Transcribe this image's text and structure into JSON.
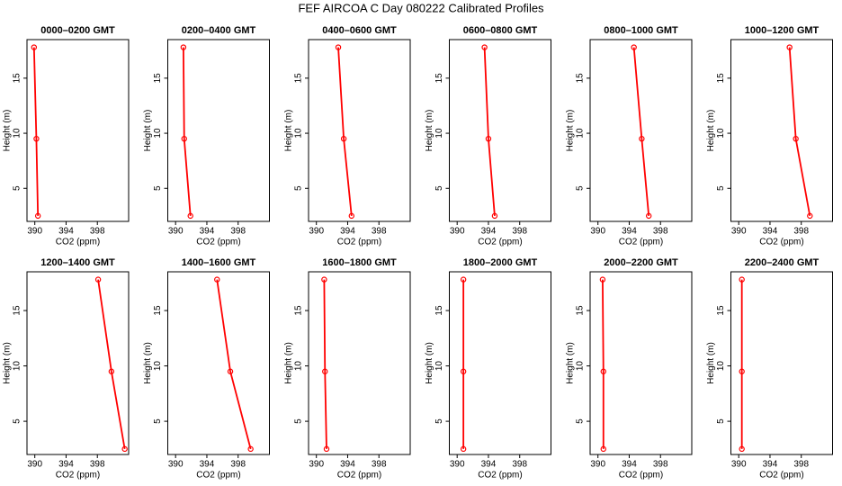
{
  "title": "FEF AIRCOA C  Day 080222  Calibrated Profiles",
  "chart_data": [
    {
      "type": "line",
      "title": "0000–0200 GMT",
      "xlabel": "CO2 (ppm)",
      "ylabel": "Height (m)",
      "x": [
        389.9,
        390.2,
        390.4
      ],
      "values": [
        17.8,
        9.5,
        2.5
      ],
      "color": "#ff0000",
      "xlim": [
        389,
        402
      ],
      "ylim": [
        2,
        18.5
      ],
      "xticks": [
        390,
        394,
        398
      ],
      "yticks": [
        5,
        10,
        15
      ]
    },
    {
      "type": "line",
      "title": "0200–0400 GMT",
      "xlabel": "CO2 (ppm)",
      "ylabel": "Height (m)",
      "x": [
        391.0,
        391.1,
        391.9
      ],
      "values": [
        17.8,
        9.5,
        2.5
      ],
      "color": "#ff0000",
      "xlim": [
        389,
        402
      ],
      "ylim": [
        2,
        18.5
      ],
      "xticks": [
        390,
        394,
        398
      ],
      "yticks": [
        5,
        10,
        15
      ]
    },
    {
      "type": "line",
      "title": "0400–0600 GMT",
      "xlabel": "CO2 (ppm)",
      "ylabel": "Height (m)",
      "x": [
        392.8,
        393.5,
        394.5
      ],
      "values": [
        17.8,
        9.5,
        2.5
      ],
      "color": "#ff0000",
      "xlim": [
        389,
        402
      ],
      "ylim": [
        2,
        18.5
      ],
      "xticks": [
        390,
        394,
        398
      ],
      "yticks": [
        5,
        10,
        15
      ]
    },
    {
      "type": "line",
      "title": "0600–0800 GMT",
      "xlabel": "CO2 (ppm)",
      "ylabel": "Height (m)",
      "x": [
        393.5,
        394.0,
        394.8
      ],
      "values": [
        17.8,
        9.5,
        2.5
      ],
      "color": "#ff0000",
      "xlim": [
        389,
        402
      ],
      "ylim": [
        2,
        18.5
      ],
      "xticks": [
        390,
        394,
        398
      ],
      "yticks": [
        5,
        10,
        15
      ]
    },
    {
      "type": "line",
      "title": "0800–1000 GMT",
      "xlabel": "CO2 (ppm)",
      "ylabel": "Height (m)",
      "x": [
        394.6,
        395.6,
        396.5
      ],
      "values": [
        17.8,
        9.5,
        2.5
      ],
      "color": "#ff0000",
      "xlim": [
        389,
        402
      ],
      "ylim": [
        2,
        18.5
      ],
      "xticks": [
        390,
        394,
        398
      ],
      "yticks": [
        5,
        10,
        15
      ]
    },
    {
      "type": "line",
      "title": "1000–1200 GMT",
      "xlabel": "CO2 (ppm)",
      "ylabel": "Height (m)",
      "x": [
        396.5,
        397.3,
        399.1
      ],
      "values": [
        17.8,
        9.5,
        2.5
      ],
      "color": "#ff0000",
      "xlim": [
        389,
        402
      ],
      "ylim": [
        2,
        18.5
      ],
      "xticks": [
        390,
        394,
        398
      ],
      "yticks": [
        5,
        10,
        15
      ]
    },
    {
      "type": "line",
      "title": "1200–1400 GMT",
      "xlabel": "CO2 (ppm)",
      "ylabel": "Height (m)",
      "x": [
        398.1,
        399.8,
        401.5
      ],
      "values": [
        17.8,
        9.5,
        2.5
      ],
      "color": "#ff0000",
      "xlim": [
        389,
        402
      ],
      "ylim": [
        2,
        18.5
      ],
      "xticks": [
        390,
        394,
        398
      ],
      "yticks": [
        5,
        10,
        15
      ]
    },
    {
      "type": "line",
      "title": "1400–1600 GMT",
      "xlabel": "CO2 (ppm)",
      "ylabel": "Height (m)",
      "x": [
        395.3,
        397.0,
        399.6
      ],
      "values": [
        17.8,
        9.5,
        2.5
      ],
      "color": "#ff0000",
      "xlim": [
        389,
        402
      ],
      "ylim": [
        2,
        18.5
      ],
      "xticks": [
        390,
        394,
        398
      ],
      "yticks": [
        5,
        10,
        15
      ]
    },
    {
      "type": "line",
      "title": "1600–1800 GMT",
      "xlabel": "CO2 (ppm)",
      "ylabel": "Height (m)",
      "x": [
        391.0,
        391.1,
        391.3
      ],
      "values": [
        17.8,
        9.5,
        2.5
      ],
      "color": "#ff0000",
      "xlim": [
        389,
        402
      ],
      "ylim": [
        2,
        18.5
      ],
      "xticks": [
        390,
        394,
        398
      ],
      "yticks": [
        5,
        10,
        15
      ]
    },
    {
      "type": "line",
      "title": "1800–2000 GMT",
      "xlabel": "CO2 (ppm)",
      "ylabel": "Height (m)",
      "x": [
        390.8,
        390.8,
        390.8
      ],
      "values": [
        17.8,
        9.5,
        2.5
      ],
      "color": "#ff0000",
      "xlim": [
        389,
        402
      ],
      "ylim": [
        2,
        18.5
      ],
      "xticks": [
        390,
        394,
        398
      ],
      "yticks": [
        5,
        10,
        15
      ]
    },
    {
      "type": "line",
      "title": "2000–2200 GMT",
      "xlabel": "CO2 (ppm)",
      "ylabel": "Height (m)",
      "x": [
        390.6,
        390.7,
        390.7
      ],
      "values": [
        17.8,
        9.5,
        2.5
      ],
      "color": "#ff0000",
      "xlim": [
        389,
        402
      ],
      "ylim": [
        2,
        18.5
      ],
      "xticks": [
        390,
        394,
        398
      ],
      "yticks": [
        5,
        10,
        15
      ]
    },
    {
      "type": "line",
      "title": "2200–2400 GMT",
      "xlabel": "CO2 (ppm)",
      "ylabel": "Height (m)",
      "x": [
        390.4,
        390.4,
        390.4
      ],
      "values": [
        17.8,
        9.5,
        2.5
      ],
      "color": "#ff0000",
      "xlim": [
        389,
        402
      ],
      "ylim": [
        2,
        18.5
      ],
      "xticks": [
        390,
        394,
        398
      ],
      "yticks": [
        5,
        10,
        15
      ]
    }
  ]
}
